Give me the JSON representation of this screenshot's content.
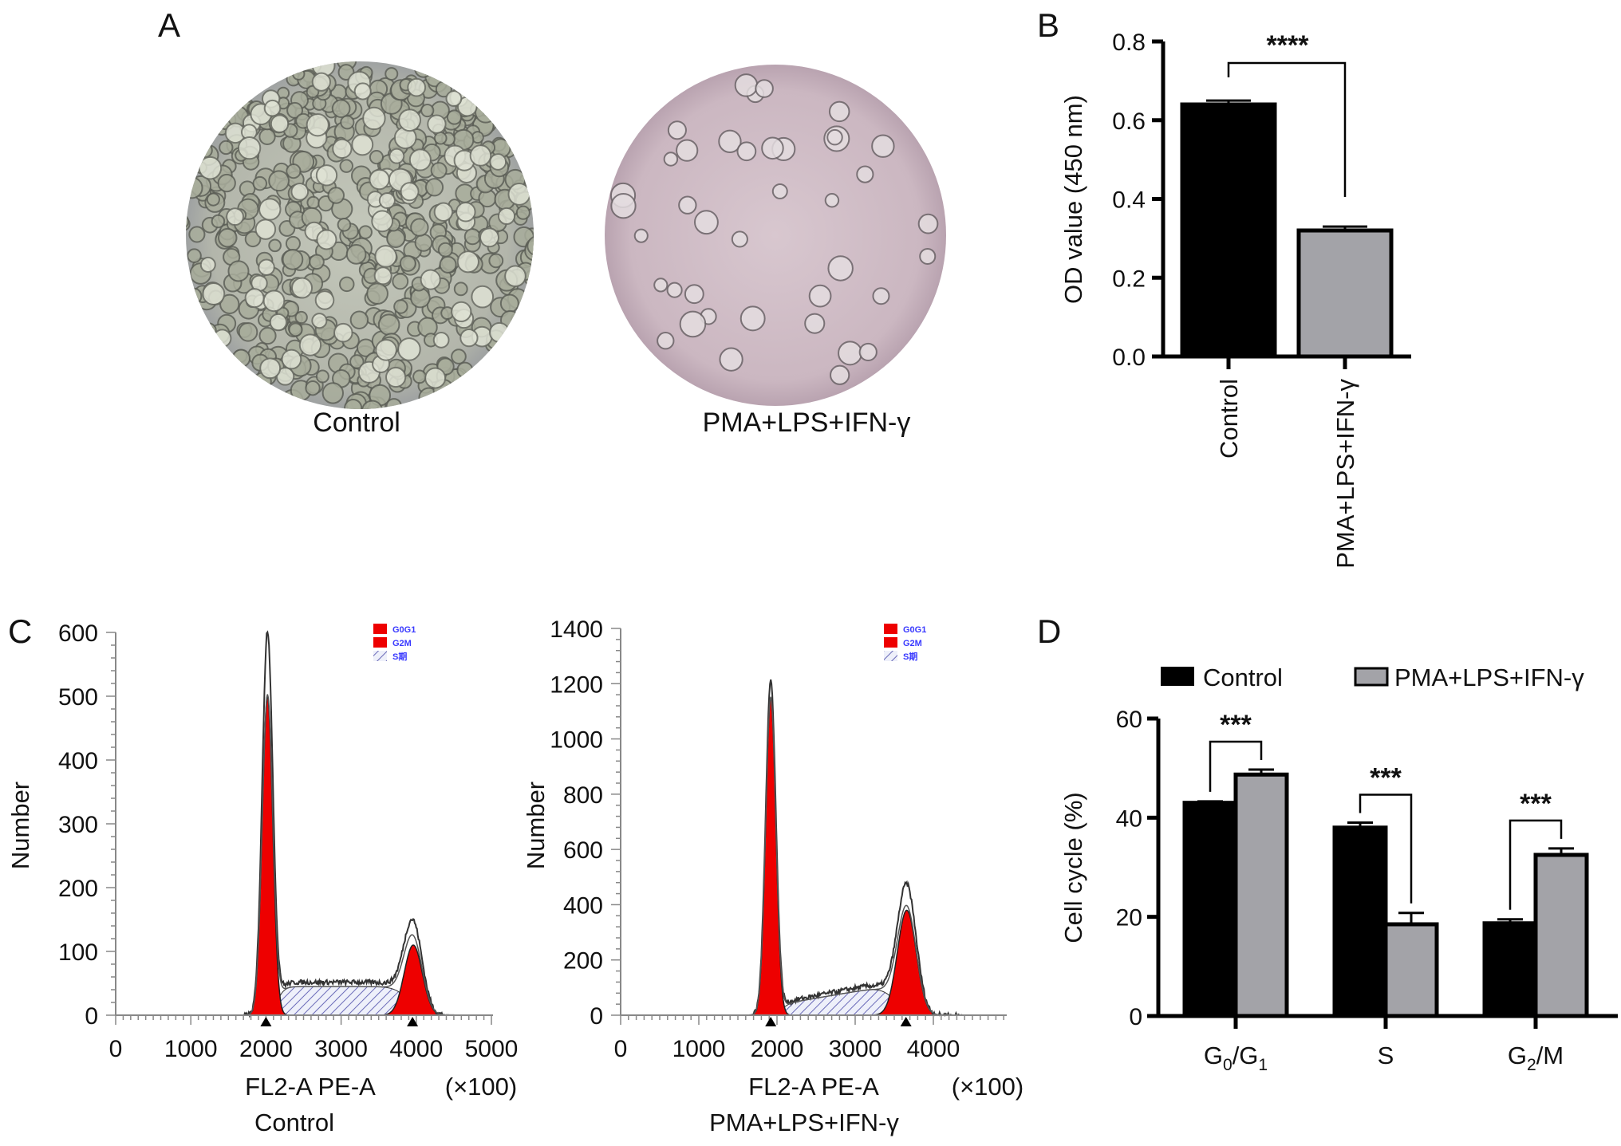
{
  "panels": {
    "a": "A",
    "b": "B",
    "c": "C",
    "d": "D"
  },
  "micrographs": {
    "control_label": "Control",
    "treated_label": "PMA+LPS+IFN-γ",
    "control_tint": "#b9bcb0",
    "treated_tint": "#cdb9c2"
  },
  "colors": {
    "control": "#000000",
    "treated": "#a3a3a8",
    "g0g1": "#ee0000",
    "g2m": "#ee0000",
    "s_hatch": "#6a6ab8"
  },
  "chart_data": [
    {
      "id": "B",
      "type": "bar",
      "categories": [
        "Control",
        "PMA+LPS+IFN-γ"
      ],
      "values": [
        0.64,
        0.32
      ],
      "errors": [
        0.01,
        0.01
      ],
      "ylabel": "OD value (450 nm)",
      "ylim": [
        0,
        0.8
      ],
      "yticks": [
        "0.0",
        "0.2",
        "0.4",
        "0.6",
        "0.8"
      ],
      "significance": "****"
    },
    {
      "id": "C-control",
      "type": "area",
      "title": "Control",
      "xlabel": "FL2-A PE-A",
      "xunit": "(×100)",
      "ylabel": "Number",
      "xlim": [
        0,
        5000
      ],
      "ylim": [
        0,
        600
      ],
      "xticks": [
        "0",
        "1000",
        "2000",
        "3000",
        "4000",
        "5000"
      ],
      "yticks": [
        "0",
        "100",
        "200",
        "300",
        "400",
        "500",
        "600"
      ],
      "legend": [
        "G0G1",
        "G2M",
        "S期"
      ],
      "legend_position": "top-right",
      "peaks": {
        "g0g1": {
          "mean": 2020,
          "sd": 70,
          "height": 500
        },
        "g2m": {
          "mean": 3960,
          "sd": 120,
          "height": 110
        },
        "s": {
          "start": 2150,
          "end": 3900,
          "h_start": 45,
          "h_end": 45
        }
      },
      "raw_max": 600,
      "markers": [
        2000,
        3950
      ]
    },
    {
      "id": "C-treated",
      "type": "area",
      "title": "PMA+LPS+IFN-γ",
      "xlabel": "FL2-A PE-A",
      "xunit": "(×100)",
      "ylabel": "Number",
      "xlim": [
        0,
        5000
      ],
      "ylim": [
        0,
        1400
      ],
      "xticks": [
        "0",
        "1000",
        "2000",
        "3000",
        "4000"
      ],
      "yticks": [
        "0",
        "200",
        "400",
        "600",
        "800",
        "1000",
        "1200",
        "1400"
      ],
      "legend": [
        "G0G1",
        "G2M",
        "S期"
      ],
      "legend_position": "top-right",
      "peaks": {
        "g0g1": {
          "mean": 1920,
          "sd": 65,
          "height": 1150
        },
        "g2m": {
          "mean": 3660,
          "sd": 120,
          "height": 380
        },
        "s": {
          "start": 2050,
          "end": 3500,
          "h_start": 40,
          "h_end": 110
        }
      },
      "raw_max": 1210,
      "markers": [
        1920,
        3650
      ]
    },
    {
      "id": "D",
      "type": "bar",
      "categories": [
        "G0/G1",
        "S",
        "G2/M"
      ],
      "series": [
        {
          "name": "Control",
          "values": [
            43.0,
            38.0,
            18.7
          ],
          "errors": [
            0.3,
            1.0,
            0.8
          ]
        },
        {
          "name": "PMA+LPS+IFN-γ",
          "values": [
            48.7,
            18.5,
            32.5
          ],
          "errors": [
            1.0,
            2.3,
            1.3
          ]
        }
      ],
      "ylabel": "Cell cycle (%)",
      "ylim": [
        0,
        60
      ],
      "yticks": [
        "0",
        "20",
        "40",
        "60"
      ],
      "significance": [
        "***",
        "***",
        "***"
      ],
      "legend_position": "top"
    }
  ]
}
